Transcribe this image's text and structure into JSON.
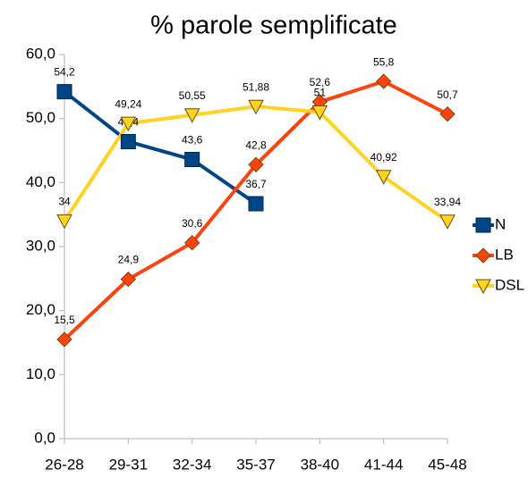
{
  "chart_data": {
    "type": "line",
    "title": "% parole semplificate",
    "categories": [
      "26-28",
      "29-31",
      "32-34",
      "35-37",
      "38-40",
      "41-44",
      "45-48"
    ],
    "series": [
      {
        "name": "N",
        "color": "#004586",
        "marker": "square",
        "values": [
          54.2,
          46.4,
          43.6,
          36.7,
          null,
          null,
          null
        ],
        "value_labels": [
          "54,2",
          "46,4",
          "43,6",
          "36,7",
          null,
          null,
          null
        ]
      },
      {
        "name": "LB",
        "color": "#ff420e",
        "marker": "diamond",
        "values": [
          15.5,
          24.9,
          30.6,
          42.8,
          52.6,
          55.8,
          50.7
        ],
        "value_labels": [
          "15,5",
          "24,9",
          "30,6",
          "42,8",
          "52,6",
          "55,8",
          "50,7"
        ]
      },
      {
        "name": "DSL",
        "color": "#ffd320",
        "marker": "triangle-down",
        "values": [
          34,
          49.24,
          50.55,
          51.88,
          51,
          40.92,
          33.94
        ],
        "value_labels": [
          "34",
          "49,24",
          "50,55",
          "51,88",
          "51",
          "40,92",
          "33,94"
        ]
      }
    ],
    "ylim": [
      0,
      60
    ],
    "yticks": [
      {
        "value": 0,
        "label": "0,0"
      },
      {
        "value": 10,
        "label": "10,0"
      },
      {
        "value": 20,
        "label": "20,0"
      },
      {
        "value": 30,
        "label": "30,0"
      },
      {
        "value": 40,
        "label": "40,0"
      },
      {
        "value": 50,
        "label": "50,0"
      },
      {
        "value": 60,
        "label": "60,0"
      }
    ],
    "grid": false,
    "legend": "right"
  }
}
